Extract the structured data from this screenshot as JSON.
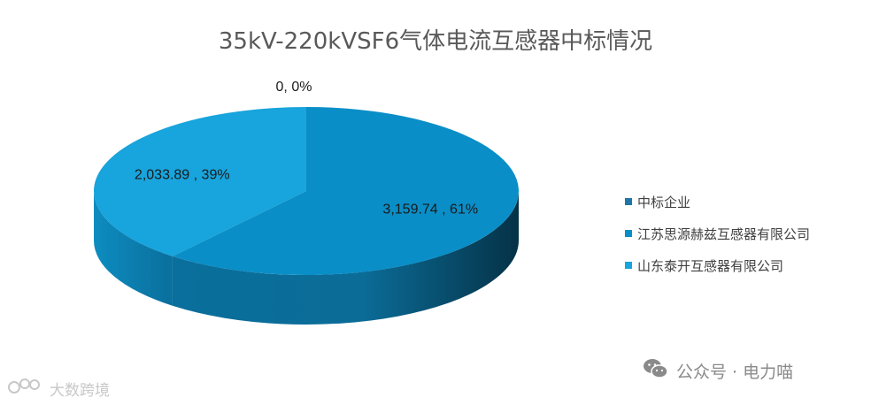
{
  "chart_data": {
    "type": "pie",
    "title": "35kV-220kVSF6气体电流互感器中标情况",
    "categories": [
      "中标企业",
      "江苏思源赫兹互感器有限公司",
      "山东泰开互感器有限公司"
    ],
    "values": [
      0,
      3159.74,
      2033.89
    ],
    "percents": [
      "0%",
      "61%",
      "39%"
    ],
    "data_labels": [
      "0, 0%",
      "3,159.74 , 61%",
      "2,033.89 , 39%"
    ],
    "colors": [
      "#1f77a8",
      "#0a8ec7",
      "#18a4dc"
    ],
    "legend": "right"
  },
  "watermarks": {
    "left": "大数跨境",
    "left_icon": "logo-icon",
    "right": "公众号 · 电力喵",
    "right_icon": "wechat-icon"
  }
}
